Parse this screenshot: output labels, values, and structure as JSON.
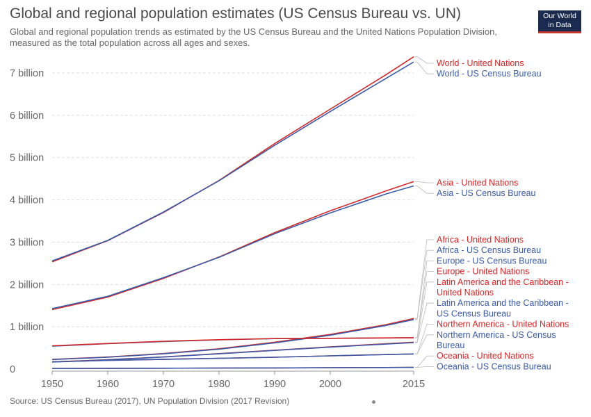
{
  "title": "Global and regional population estimates (US Census Bureau vs. UN)",
  "subtitle": "Global and regional population trends as estimated by the US Census Bureau and the United Nations Population Division, measured as the total population across all ages and sexes.",
  "logo": {
    "line1": "Our World",
    "line2": "in Data"
  },
  "source": "Source: US Census Bureau (2017), UN Population Division (2017 Revision)",
  "colors": {
    "un": "#d62728",
    "census": "#3a5ba9",
    "grid": "#dddddd",
    "axis": "#999999"
  },
  "chart_data": {
    "type": "line",
    "x_range": [
      1950,
      2015
    ],
    "ylim": [
      0,
      7400000000
    ],
    "x_ticks": [
      {
        "value": 1950,
        "label": "1950"
      },
      {
        "value": 1960,
        "label": "1960"
      },
      {
        "value": 1970,
        "label": "1970"
      },
      {
        "value": 1980,
        "label": "1980"
      },
      {
        "value": 1990,
        "label": "1990"
      },
      {
        "value": 2000,
        "label": "2000"
      },
      {
        "value": 2015,
        "label": "2015"
      }
    ],
    "y_ticks": [
      {
        "value": 0,
        "label": "0"
      },
      {
        "value": 1000000000,
        "label": "1 billion"
      },
      {
        "value": 2000000000,
        "label": "2 billion"
      },
      {
        "value": 3000000000,
        "label": "3 billion"
      },
      {
        "value": 4000000000,
        "label": "4 billion"
      },
      {
        "value": 5000000000,
        "label": "5 billion"
      },
      {
        "value": 6000000000,
        "label": "6 billion"
      },
      {
        "value": 7000000000,
        "label": "7 billion"
      }
    ],
    "grid": true,
    "series": [
      {
        "name": "World - United Nations",
        "source": "un",
        "points": [
          [
            1950,
            2536000000
          ],
          [
            1960,
            3035000000
          ],
          [
            1970,
            3700000000
          ],
          [
            1980,
            4458000000
          ],
          [
            1990,
            5331000000
          ],
          [
            2000,
            6145000000
          ],
          [
            2010,
            6958000000
          ],
          [
            2015,
            7383000000
          ]
        ]
      },
      {
        "name": "World - US Census Bureau",
        "source": "census",
        "points": [
          [
            1950,
            2557000000
          ],
          [
            1960,
            3042000000
          ],
          [
            1970,
            3712000000
          ],
          [
            1980,
            4452000000
          ],
          [
            1990,
            5290000000
          ],
          [
            2000,
            6090000000
          ],
          [
            2010,
            6870000000
          ],
          [
            2015,
            7260000000
          ]
        ]
      },
      {
        "name": "Asia - United Nations",
        "source": "un",
        "points": [
          [
            1950,
            1405000000
          ],
          [
            1960,
            1700000000
          ],
          [
            1970,
            2142000000
          ],
          [
            1980,
            2649000000
          ],
          [
            1990,
            3226000000
          ],
          [
            2000,
            3741000000
          ],
          [
            2010,
            4210000000
          ],
          [
            2015,
            4434000000
          ]
        ]
      },
      {
        "name": "Asia - US Census Bureau",
        "source": "census",
        "points": [
          [
            1950,
            1430000000
          ],
          [
            1960,
            1720000000
          ],
          [
            1970,
            2160000000
          ],
          [
            1980,
            2640000000
          ],
          [
            1990,
            3200000000
          ],
          [
            2000,
            3690000000
          ],
          [
            2010,
            4140000000
          ],
          [
            2015,
            4330000000
          ]
        ]
      },
      {
        "name": "Africa - United Nations",
        "source": "un",
        "points": [
          [
            1950,
            228000000
          ],
          [
            1960,
            284000000
          ],
          [
            1970,
            366000000
          ],
          [
            1980,
            480000000
          ],
          [
            1990,
            635000000
          ],
          [
            2000,
            818000000
          ],
          [
            2010,
            1049000000
          ],
          [
            2015,
            1194000000
          ]
        ]
      },
      {
        "name": "Africa - US Census Bureau",
        "source": "census",
        "points": [
          [
            1950,
            225000000
          ],
          [
            1960,
            280000000
          ],
          [
            1970,
            360000000
          ],
          [
            1980,
            470000000
          ],
          [
            1990,
            620000000
          ],
          [
            2000,
            800000000
          ],
          [
            2010,
            1030000000
          ],
          [
            2015,
            1170000000
          ]
        ]
      },
      {
        "name": "Europe - US Census Bureau",
        "source": "census",
        "points": [
          [
            1950,
            540000000
          ],
          [
            1960,
            600000000
          ],
          [
            1970,
            650000000
          ],
          [
            1980,
            690000000
          ],
          [
            1990,
            720000000
          ],
          [
            2000,
            727000000
          ],
          [
            2010,
            735000000
          ],
          [
            2015,
            740000000
          ]
        ]
      },
      {
        "name": "Europe - United Nations",
        "source": "un",
        "points": [
          [
            1950,
            549000000
          ],
          [
            1960,
            605000000
          ],
          [
            1970,
            657000000
          ],
          [
            1980,
            694000000
          ],
          [
            1990,
            721000000
          ],
          [
            2000,
            726000000
          ],
          [
            2010,
            736000000
          ],
          [
            2015,
            741000000
          ]
        ]
      },
      {
        "name": "Latin America and the Caribbean - United Nations",
        "source": "un",
        "points": [
          [
            1950,
            169000000
          ],
          [
            1960,
            221000000
          ],
          [
            1970,
            288000000
          ],
          [
            1980,
            364000000
          ],
          [
            1990,
            446000000
          ],
          [
            2000,
            526000000
          ],
          [
            2010,
            598000000
          ],
          [
            2015,
            634000000
          ]
        ]
      },
      {
        "name": "Latin America and the Caribbean - US Census Bureau",
        "source": "census",
        "points": [
          [
            1950,
            166000000
          ],
          [
            1960,
            218000000
          ],
          [
            1970,
            284000000
          ],
          [
            1980,
            360000000
          ],
          [
            1990,
            440000000
          ],
          [
            2000,
            520000000
          ],
          [
            2010,
            590000000
          ],
          [
            2015,
            625000000
          ]
        ]
      },
      {
        "name": "Northern America - United Nations",
        "source": "un",
        "points": [
          [
            1950,
            173000000
          ],
          [
            1960,
            205000000
          ],
          [
            1970,
            231000000
          ],
          [
            1980,
            254000000
          ],
          [
            1990,
            280000000
          ],
          [
            2000,
            313000000
          ],
          [
            2010,
            343000000
          ],
          [
            2015,
            357000000
          ]
        ]
      },
      {
        "name": "Northern America - US Census Bureau",
        "source": "census",
        "points": [
          [
            1950,
            171000000
          ],
          [
            1960,
            203000000
          ],
          [
            1970,
            229000000
          ],
          [
            1980,
            253000000
          ],
          [
            1990,
            279000000
          ],
          [
            2000,
            312000000
          ],
          [
            2010,
            342000000
          ],
          [
            2015,
            356000000
          ]
        ]
      },
      {
        "name": "Oceania - United Nations",
        "source": "un",
        "points": [
          [
            1950,
            12700000
          ],
          [
            1960,
            15800000
          ],
          [
            1970,
            19700000
          ],
          [
            1980,
            22900000
          ],
          [
            1990,
            27000000
          ],
          [
            2000,
            31400000
          ],
          [
            2010,
            36700000
          ],
          [
            2015,
            39500000
          ]
        ]
      },
      {
        "name": "Oceania - US Census Bureau",
        "source": "census",
        "points": [
          [
            1950,
            12500000
          ],
          [
            1960,
            15600000
          ],
          [
            1970,
            19500000
          ],
          [
            1980,
            22700000
          ],
          [
            1990,
            26800000
          ],
          [
            2000,
            31200000
          ],
          [
            2010,
            36500000
          ],
          [
            2015,
            39200000
          ]
        ]
      }
    ],
    "labels": [
      {
        "text": "World - United Nations",
        "series": 0,
        "source": "un",
        "lines": [
          "World - United Nations"
        ]
      },
      {
        "text": "World - US Census Bureau",
        "series": 1,
        "source": "census",
        "lines": [
          "World - US Census Bureau"
        ]
      },
      {
        "text": "Asia - United Nations",
        "series": 2,
        "source": "un",
        "lines": [
          "Asia - United Nations"
        ]
      },
      {
        "text": "Asia - US Census Bureau",
        "series": 3,
        "source": "census",
        "lines": [
          "Asia - US Census Bureau"
        ]
      },
      {
        "text": "Africa - United Nations",
        "series": 4,
        "source": "un",
        "lines": [
          "Africa - United Nations"
        ]
      },
      {
        "text": "Africa - US Census Bureau",
        "series": 5,
        "source": "census",
        "lines": [
          "Africa - US Census Bureau"
        ]
      },
      {
        "text": "Europe - US Census Bureau",
        "series": 6,
        "source": "census",
        "lines": [
          "Europe - US Census Bureau"
        ]
      },
      {
        "text": "Europe - United Nations",
        "series": 7,
        "source": "un",
        "lines": [
          "Europe - United Nations"
        ]
      },
      {
        "text": "Latin America and the Caribbean - United Nations",
        "series": 8,
        "source": "un",
        "lines": [
          "Latin America and the Caribbean -",
          "United Nations"
        ]
      },
      {
        "text": "Latin America and the Caribbean - US Census Bureau",
        "series": 9,
        "source": "census",
        "lines": [
          "Latin America and the Caribbean -",
          "US Census Bureau"
        ]
      },
      {
        "text": "Northern America - United Nations",
        "series": 10,
        "source": "un",
        "lines": [
          "Northern America - United Nations"
        ]
      },
      {
        "text": "Northern America - US Census Bureau",
        "series": 11,
        "source": "census",
        "lines": [
          "Northern America - US Census",
          "Bureau"
        ]
      },
      {
        "text": "Oceania - United Nations",
        "series": 12,
        "source": "un",
        "lines": [
          "Oceania - United Nations"
        ]
      },
      {
        "text": "Oceania - US Census Bureau",
        "series": 13,
        "source": "census",
        "lines": [
          "Oceania - US Census Bureau"
        ]
      }
    ]
  }
}
